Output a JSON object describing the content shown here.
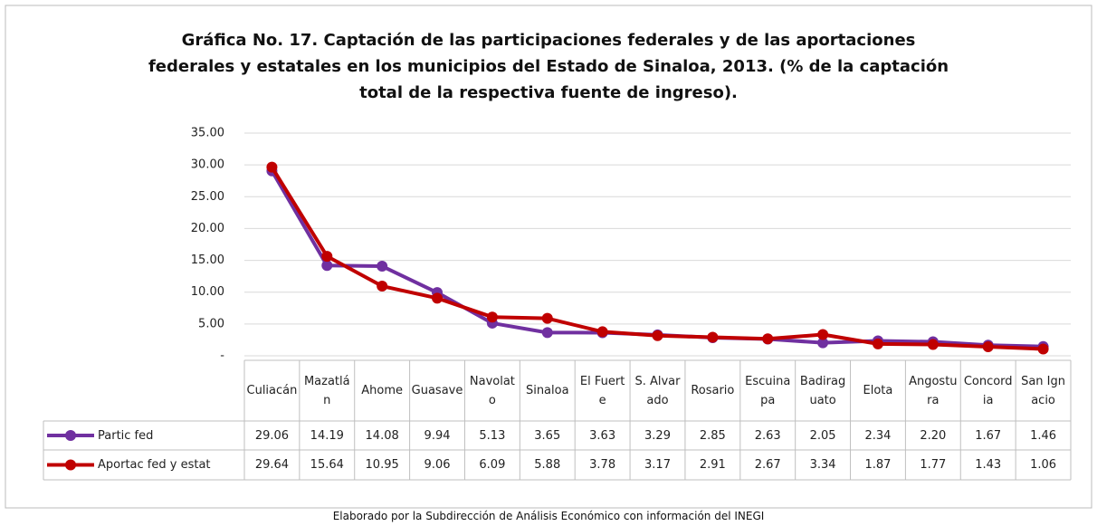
{
  "chart_data": {
    "type": "line",
    "title": "Gráfica No. 17. Captación de las participaciones federales y de las aportaciones federales y estatales en los municipios del Estado de Sinaloa, 2013. (% de la captación total de la respectiva fuente de ingreso).",
    "categories": [
      "Culiacán",
      "Mazatlán",
      "Ahome",
      "Guasave",
      "Navolato",
      "Sinaloa",
      "El Fuerte",
      "S. Alvarado",
      "Rosario",
      "Escuinapa",
      "Badiraguato",
      "Elota",
      "Angostura",
      "Concordia",
      "San Ignacio"
    ],
    "series": [
      {
        "name": "Partic fed",
        "color": "#7030a0",
        "values": [
          29.06,
          14.19,
          14.08,
          9.94,
          5.13,
          3.65,
          3.63,
          3.29,
          2.85,
          2.63,
          2.05,
          2.34,
          2.2,
          1.67,
          1.46
        ],
        "value_labels": [
          "29.06",
          "14.19",
          "14.08",
          "9.94",
          "5.13",
          "3.65",
          "3.63",
          "3.29",
          "2.85",
          "2.63",
          "2.05",
          "2.34",
          "2.20",
          "1.67",
          "1.46"
        ]
      },
      {
        "name": "Aportac fed y estat",
        "color": "#c00000",
        "values": [
          29.64,
          15.64,
          10.95,
          9.06,
          6.09,
          5.88,
          3.78,
          3.17,
          2.91,
          2.67,
          3.34,
          1.87,
          1.77,
          1.43,
          1.06
        ],
        "value_labels": [
          "29.64",
          "15.64",
          "10.95",
          "9.06",
          "6.09",
          "5.88",
          "3.78",
          "3.17",
          "2.91",
          "2.67",
          "3.34",
          "1.87",
          "1.77",
          "1.43",
          "1.06"
        ]
      }
    ],
    "ylim": [
      0,
      35
    ],
    "yticks": [
      {
        "value": 0,
        "label": "-"
      },
      {
        "value": 5,
        "label": "5.00"
      },
      {
        "value": 10,
        "label": "10.00"
      },
      {
        "value": 15,
        "label": "15.00"
      },
      {
        "value": 20,
        "label": "20.00"
      },
      {
        "value": 25,
        "label": "25.00"
      },
      {
        "value": 30,
        "label": "30.00"
      },
      {
        "value": 35,
        "label": "35.00"
      }
    ],
    "grid": true,
    "source": "Elaborado por la Subdirección de Análisis Económico con información del INEGI"
  }
}
